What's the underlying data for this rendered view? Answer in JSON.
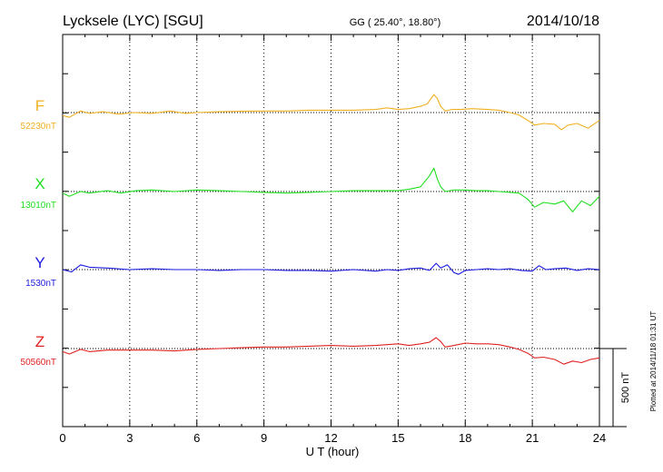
{
  "header": {
    "station": "Lycksele (LYC)  [SGU]",
    "coords": "GG ( 25.40°,  18.80°)",
    "date": "2014/10/18"
  },
  "footer": {
    "plotted": "Plotted at 2014/11/18 01:31  UT",
    "scale_bar": "500 nT"
  },
  "chart_data": {
    "type": "line",
    "xlabel": "U T (hour)",
    "xlim": [
      0,
      24
    ],
    "xticks": [
      "0",
      "3",
      "6",
      "9",
      "12",
      "15",
      "18",
      "21",
      "24"
    ],
    "scale_nT": 500,
    "series": [
      {
        "name": "F",
        "baseline": "52230nT",
        "color": "#f0b020",
        "x": [
          0,
          0.3,
          0.8,
          1.2,
          1.8,
          2.5,
          3.2,
          4,
          4.8,
          5.5,
          6,
          7,
          8,
          9,
          10,
          11,
          12,
          13,
          14,
          14.5,
          15,
          15.5,
          16,
          16.3,
          16.6,
          16.75,
          16.9,
          17.1,
          17.4,
          17.8,
          18.3,
          19,
          19.5,
          20,
          20.4,
          20.8,
          21.1,
          21.5,
          22,
          22.3,
          22.6,
          23,
          23.5,
          24
        ],
        "y": [
          -20,
          -30,
          10,
          -5,
          5,
          -10,
          0,
          -5,
          10,
          -5,
          0,
          5,
          8,
          10,
          10,
          15,
          15,
          15,
          20,
          30,
          20,
          25,
          40,
          55,
          115,
          90,
          40,
          10,
          20,
          20,
          25,
          20,
          15,
          0,
          -15,
          -50,
          -80,
          -70,
          -75,
          -110,
          -80,
          -70,
          -100,
          -50
        ]
      },
      {
        "name": "X",
        "baseline": "13010nT",
        "color": "#20e020",
        "x": [
          0,
          0.3,
          0.8,
          1.2,
          2,
          2.6,
          3.3,
          4,
          5,
          6,
          7,
          8,
          9,
          10,
          11,
          12,
          13,
          14,
          15,
          15.5,
          16,
          16.4,
          16.6,
          16.75,
          16.9,
          17.1,
          17.5,
          18,
          18.5,
          19,
          19.5,
          20,
          20.4,
          20.8,
          21.1,
          21.5,
          22,
          22.4,
          22.8,
          23.2,
          23.6,
          24
        ],
        "y": [
          -10,
          -30,
          0,
          -10,
          5,
          -10,
          5,
          10,
          0,
          10,
          5,
          0,
          -5,
          -10,
          -5,
          0,
          5,
          5,
          5,
          15,
          30,
          100,
          150,
          80,
          30,
          0,
          10,
          10,
          5,
          5,
          0,
          -5,
          -10,
          -50,
          -100,
          -70,
          -80,
          -60,
          -130,
          -60,
          -90,
          -30
        ]
      },
      {
        "name": "Y",
        "baseline": "1530nT",
        "color": "#1a1ae0",
        "x": [
          0,
          0.4,
          0.8,
          1.2,
          2,
          3,
          4,
          5,
          6,
          7,
          8,
          9,
          10,
          11,
          12,
          13,
          14,
          14.5,
          15,
          15.5,
          16,
          16.4,
          16.7,
          16.9,
          17.2,
          17.5,
          17.7,
          18,
          18.5,
          19,
          19.5,
          20,
          20.5,
          21,
          21.3,
          21.6,
          22,
          22.5,
          23,
          23.5,
          24
        ],
        "y": [
          0,
          -15,
          30,
          15,
          10,
          0,
          5,
          0,
          0,
          -5,
          0,
          0,
          -5,
          -5,
          -10,
          0,
          -10,
          0,
          -5,
          5,
          10,
          -5,
          40,
          10,
          30,
          -20,
          -30,
          -5,
          0,
          5,
          0,
          5,
          -5,
          -10,
          25,
          0,
          5,
          10,
          -5,
          5,
          0
        ]
      },
      {
        "name": "Z",
        "baseline": "50560nT",
        "color": "#e02020",
        "x": [
          0,
          0.3,
          0.8,
          1.2,
          2,
          3,
          4,
          5,
          6,
          7,
          8,
          9,
          10,
          11,
          12,
          13,
          14,
          15,
          15.5,
          16,
          16.4,
          16.7,
          16.9,
          17.1,
          17.5,
          18,
          18.5,
          19,
          19.5,
          20,
          20.4,
          20.8,
          21.1,
          21.5,
          22,
          22.4,
          22.8,
          23.2,
          23.6,
          24
        ],
        "y": [
          -20,
          -35,
          -5,
          -20,
          -10,
          -10,
          -10,
          -15,
          -5,
          0,
          5,
          10,
          10,
          15,
          20,
          15,
          20,
          30,
          20,
          30,
          40,
          70,
          45,
          10,
          20,
          35,
          30,
          30,
          25,
          10,
          -5,
          -30,
          -60,
          -55,
          -70,
          -100,
          -80,
          -90,
          -70,
          -60
        ]
      }
    ]
  }
}
